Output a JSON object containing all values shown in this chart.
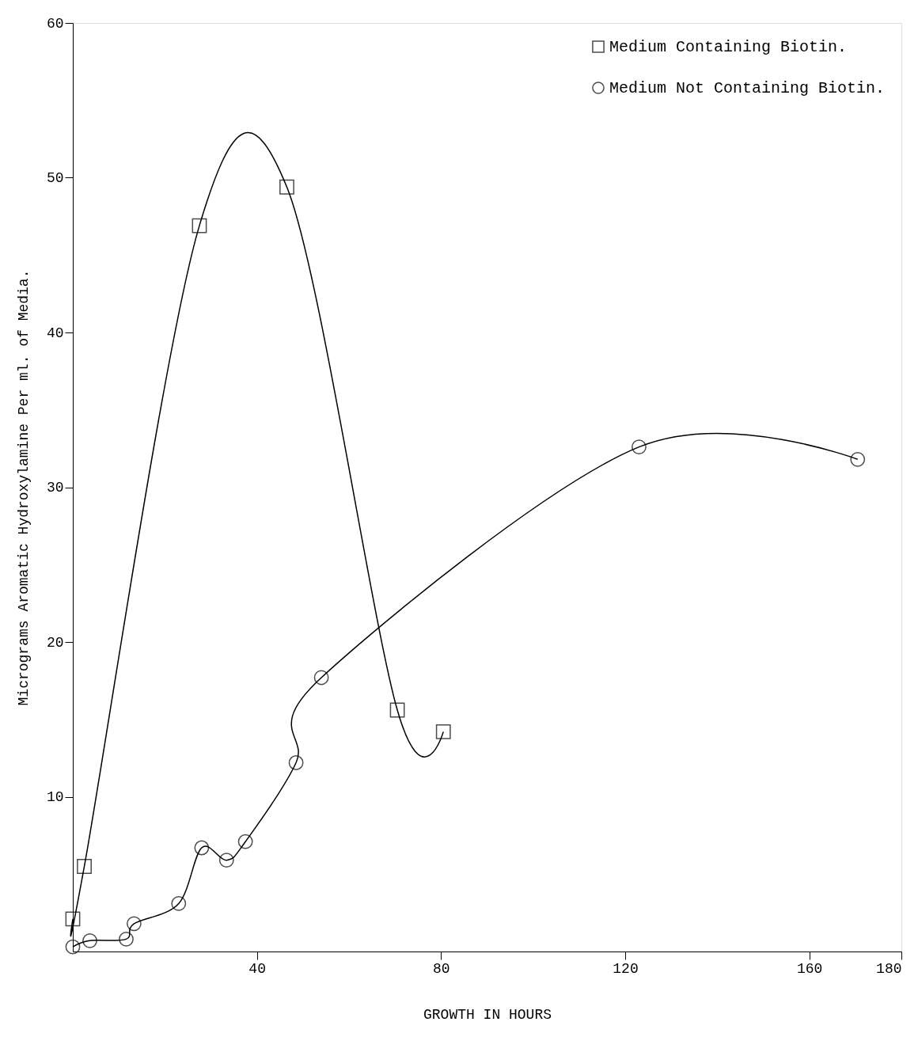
{
  "chart_data": {
    "type": "line",
    "xlabel": "GROWTH IN HOURS",
    "ylabel": "Micrograms Aromatic Hydroxylamine Per ml. of Media.",
    "series": [
      {
        "name": "Medium Containing Biotin.",
        "color": "#000000",
        "marker": "square",
        "x": [
          0,
          2.5,
          27.5,
          46.5,
          70.5,
          80.5
        ],
        "values": [
          2.1,
          5.5,
          46.9,
          49.4,
          15.6,
          14.2
        ]
      },
      {
        "name": "Medium Not Containing Biotin.",
        "color": "#000000",
        "marker": "circle",
        "x": [
          0,
          3.7,
          11.6,
          13.3,
          23,
          28,
          33.4,
          37.5,
          48.5,
          54,
          123,
          170.5
        ],
        "values": [
          0.3,
          0.7,
          0.8,
          1.8,
          3.1,
          6.7,
          5.9,
          7.1,
          12.2,
          17.7,
          32.6,
          31.8
        ]
      }
    ],
    "xlim": [
      0,
      180
    ],
    "xticks": [
      40,
      80,
      120,
      160,
      180
    ],
    "ylim": [
      0,
      60
    ],
    "yticks": [
      10,
      20,
      30,
      40,
      50,
      60
    ],
    "grid": false,
    "legend": "top right",
    "line_style": "solid"
  }
}
